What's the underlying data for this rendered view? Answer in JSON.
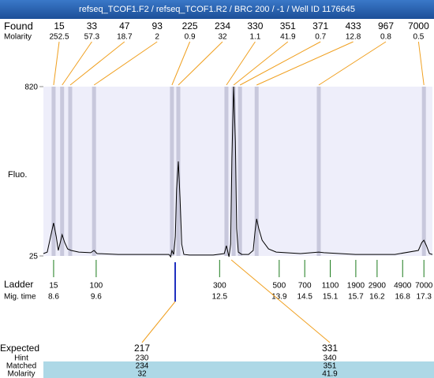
{
  "title": "refseq_TCOF1.F2 / refseq_TCOF1.R2 / BRC 200 / -1 / Well ID 1176645",
  "found": {
    "label": "Found",
    "molarity_label": "Molarity",
    "sizes": [
      15,
      33,
      47,
      93,
      225,
      234,
      330,
      351,
      371,
      433,
      967,
      7000
    ],
    "molarity": [
      252.5,
      57.3,
      18.7,
      2,
      0.9,
      32,
      1.1,
      41.9,
      0.7,
      12.8,
      0.8,
      0.5
    ],
    "times": [
      8.6,
      8.8,
      8.99,
      9.55,
      11.38,
      11.53,
      12.66,
      12.83,
      12.98,
      13.37,
      14.83,
      17.3
    ]
  },
  "chart_data": {
    "type": "line",
    "y_label": "Fluo.",
    "color": "#000000",
    "xlim": [
      8.36,
      17.5
    ],
    "ylim": [
      25,
      820
    ],
    "yticks": [
      25,
      820
    ],
    "x": [
      8.36,
      8.45,
      8.53,
      8.6,
      8.66,
      8.71,
      8.77,
      8.8,
      8.86,
      8.93,
      9.01,
      9.19,
      9.47,
      9.55,
      9.62,
      10.12,
      11.05,
      11.31,
      11.35,
      11.38,
      11.42,
      11.46,
      11.49,
      11.53,
      11.57,
      11.61,
      11.66,
      11.79,
      12.35,
      12.61,
      12.66,
      12.72,
      12.76,
      12.79,
      12.83,
      12.87,
      12.9,
      12.94,
      13.02,
      13.18,
      13.29,
      13.33,
      13.37,
      13.42,
      13.5,
      13.65,
      13.83,
      14.39,
      14.83,
      14.95,
      15.69,
      16.62,
      17.17,
      17.25,
      17.3,
      17.36,
      17.43,
      17.5
    ],
    "values": [
      36,
      43,
      117,
      180,
      117,
      51,
      99,
      125,
      88,
      58,
      51,
      43,
      40,
      51,
      36,
      32,
      32,
      32,
      21,
      51,
      32,
      117,
      339,
      469,
      302,
      80,
      32,
      29,
      29,
      36,
      73,
      21,
      80,
      487,
      820,
      561,
      154,
      43,
      32,
      32,
      51,
      136,
      199,
      154,
      99,
      58,
      43,
      36,
      43,
      40,
      32,
      32,
      51,
      88,
      99,
      73,
      36,
      32
    ]
  },
  "ladder": {
    "label": "Ladder",
    "time_label": "Mig. time",
    "sizes": [
      15,
      100,
      300,
      500,
      700,
      1100,
      1900,
      2900,
      4900,
      7000
    ],
    "times": [
      8.6,
      9.6,
      12.5,
      13.9,
      14.5,
      15.1,
      15.7,
      16.2,
      16.8,
      17.3
    ]
  },
  "expected": {
    "label": "Expected",
    "values": [
      217,
      331
    ],
    "rows": [
      {
        "label": "Hint",
        "values": [
          230,
          340
        ]
      },
      {
        "label": "Matched",
        "values": [
          234,
          351
        ]
      },
      {
        "label": "Molarity",
        "values": [
          32,
          41.9
        ]
      }
    ]
  }
}
